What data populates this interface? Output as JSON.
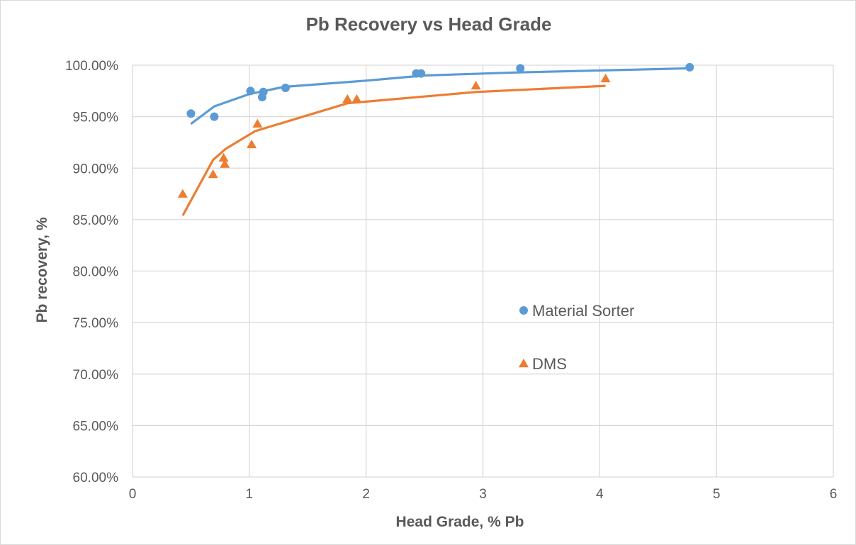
{
  "chart_data": {
    "type": "scatter",
    "title": "Pb Recovery vs Head Grade",
    "xlabel": "Head Grade,  % Pb",
    "ylabel": "Pb recovery, %",
    "xlim": [
      0,
      6
    ],
    "ylim": [
      60,
      100
    ],
    "x_ticks": [
      0,
      1,
      2,
      3,
      4,
      5,
      6
    ],
    "x_tick_labels": [
      "0",
      "1",
      "2",
      "3",
      "4",
      "5",
      "6"
    ],
    "y_ticks": [
      60,
      65,
      70,
      75,
      80,
      85,
      90,
      95,
      100
    ],
    "y_tick_labels": [
      "60.00%",
      "65.00%",
      "70.00%",
      "75.00%",
      "80.00%",
      "85.00%",
      "90.00%",
      "95.00%",
      "100.00%"
    ],
    "grid": true,
    "legend_position": "right",
    "series": [
      {
        "name": "Material Sorter",
        "marker": "circle",
        "color": "#5b9bd5",
        "points": [
          [
            0.5,
            95.3
          ],
          [
            0.7,
            95.0
          ],
          [
            1.01,
            97.5
          ],
          [
            1.11,
            96.9
          ],
          [
            1.12,
            97.4
          ],
          [
            1.31,
            97.8
          ],
          [
            2.43,
            99.2
          ],
          [
            2.47,
            99.2
          ],
          [
            3.32,
            99.7
          ],
          [
            4.77,
            99.8
          ]
        ],
        "trendline": [
          [
            0.5,
            94.3
          ],
          [
            0.7,
            96.0
          ],
          [
            1.0,
            97.2
          ],
          [
            1.3,
            97.9
          ],
          [
            2.0,
            98.5
          ],
          [
            2.5,
            99.0
          ],
          [
            3.3,
            99.3
          ],
          [
            4.77,
            99.7
          ]
        ]
      },
      {
        "name": "DMS",
        "marker": "triangle",
        "color": "#ed7d31",
        "points": [
          [
            0.43,
            87.5
          ],
          [
            0.69,
            89.4
          ],
          [
            0.78,
            91.0
          ],
          [
            0.79,
            90.4
          ],
          [
            1.02,
            92.3
          ],
          [
            1.07,
            94.3
          ],
          [
            1.84,
            96.7
          ],
          [
            1.92,
            96.7
          ],
          [
            2.94,
            98.0
          ],
          [
            4.05,
            98.7
          ]
        ],
        "trendline": [
          [
            0.43,
            85.4
          ],
          [
            0.69,
            90.8
          ],
          [
            0.8,
            91.9
          ],
          [
            1.05,
            93.6
          ],
          [
            1.84,
            96.3
          ],
          [
            2.94,
            97.4
          ],
          [
            4.05,
            98.0
          ]
        ]
      }
    ]
  }
}
